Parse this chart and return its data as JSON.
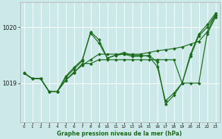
{
  "title": "Graphe pression niveau de la mer (hPa)",
  "bg_color": "#cde8e8",
  "grid_color": "#ffffff",
  "line_color": "#1a6b1a",
  "xmin": 0,
  "xmax": 23,
  "ymin": 1018.3,
  "ymax": 1020.45,
  "yticks": [
    1019,
    1020
  ],
  "series_smooth": [
    1019.18,
    1019.08,
    1019.08,
    1018.85,
    1018.85,
    1019.05,
    1019.2,
    1019.32,
    1019.42,
    1019.52,
    1019.52,
    1019.52,
    1019.52,
    1019.52,
    1019.52,
    1019.55,
    1019.58,
    1019.6,
    1019.62,
    1019.65,
    1019.7,
    1019.75,
    1019.92,
    1020.22
  ],
  "series_zigzag1": [
    1019.18,
    1019.08,
    1019.08,
    1018.85,
    1018.85,
    1019.12,
    1019.28,
    1019.42,
    1019.9,
    1019.72,
    1019.45,
    1019.5,
    1019.55,
    1019.5,
    1019.5,
    1019.48,
    1019.3,
    1018.68,
    1018.82,
    1019.0,
    1019.52,
    1019.88,
    1020.05,
    1020.25
  ],
  "series_flat": [
    1019.18,
    1019.08,
    1019.08,
    1018.85,
    1018.85,
    1019.05,
    1019.18,
    1019.35,
    1019.35,
    1019.42,
    1019.42,
    1019.42,
    1019.42,
    1019.42,
    1019.42,
    1019.42,
    1019.42,
    1019.42,
    1019.42,
    1019.0,
    1019.0,
    1019.0,
    1019.88,
    1020.18
  ],
  "series_zigzag2": [
    1019.18,
    1019.08,
    1019.08,
    1018.85,
    1018.85,
    1019.1,
    1019.25,
    1019.4,
    1019.92,
    1019.78,
    1019.45,
    1019.5,
    1019.52,
    1019.48,
    1019.48,
    1019.5,
    1019.38,
    1018.62,
    1018.78,
    1019.0,
    1019.48,
    1019.85,
    1020.0,
    1020.22
  ]
}
